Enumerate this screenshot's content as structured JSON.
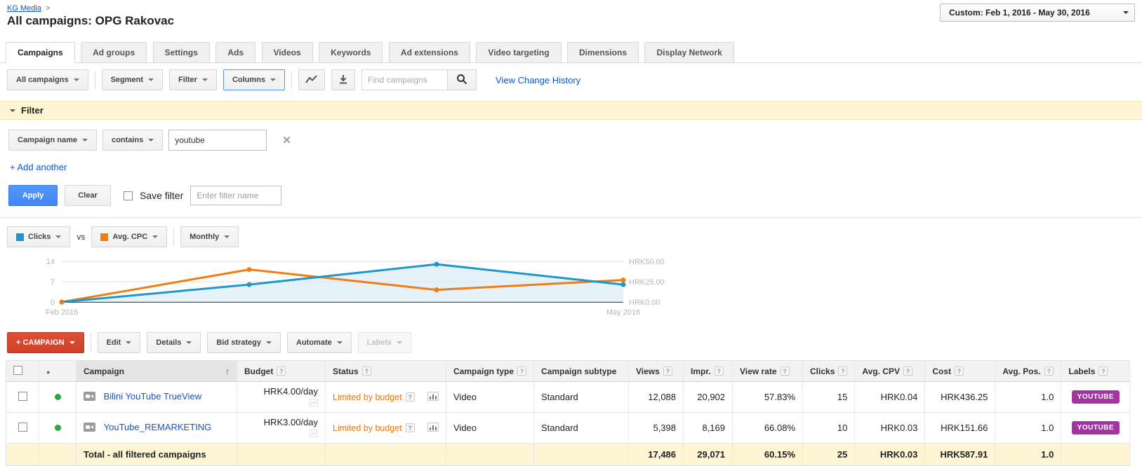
{
  "breadcrumb": {
    "account": "KG Media",
    "sep": ">"
  },
  "page_title": "All campaigns: OPG Rakovac",
  "date_range": {
    "label": "Custom: Feb 1, 2016 - May 30, 2016"
  },
  "tabs": [
    {
      "label": "Campaigns",
      "active": true
    },
    {
      "label": "Ad groups"
    },
    {
      "label": "Settings"
    },
    {
      "label": "Ads"
    },
    {
      "label": "Videos"
    },
    {
      "label": "Keywords"
    },
    {
      "label": "Ad extensions"
    },
    {
      "label": "Video targeting"
    },
    {
      "label": "Dimensions"
    },
    {
      "label": "Display Network"
    }
  ],
  "toolbar": {
    "scope_button": "All campaigns",
    "segment_button": "Segment",
    "filter_button": "Filter",
    "columns_button": "Columns",
    "search_placeholder": "Find campaigns",
    "view_change_history": "View Change History"
  },
  "filter_panel": {
    "title": "Filter",
    "field_button": "Campaign name",
    "operator_button": "contains",
    "value": "youtube",
    "add_another": "+ Add another",
    "apply_button": "Apply",
    "clear_button": "Clear",
    "save_filter_label": "Save filter",
    "filter_name_placeholder": "Enter filter name"
  },
  "chart": {
    "series1_button": "Clicks",
    "vs_label": "vs",
    "series2_button": "Avg. CPC",
    "interval_button": "Monthly",
    "left_axis": [
      "14",
      "7",
      "0"
    ],
    "right_axis": [
      "HRK50.00",
      "HRK25.00",
      "HRK0.00"
    ],
    "x_axis": [
      "Feb 2016",
      "May 2016"
    ],
    "colors": {
      "clicks": "#1f97cd",
      "clicks_fill": "#ddeef8",
      "avg_cpc": "#ef7d14"
    },
    "chart_data": {
      "type": "line",
      "x": [
        "Feb 2016",
        "Mar 2016",
        "Apr 2016",
        "May 2016"
      ],
      "series": [
        {
          "name": "Clicks",
          "axis": "left",
          "values": [
            0,
            6,
            13,
            6
          ]
        },
        {
          "name": "Avg. CPC",
          "axis": "right",
          "values": [
            0,
            40,
            15,
            27
          ]
        }
      ],
      "left_ylim": [
        0,
        14
      ],
      "right_ylim": [
        0,
        50
      ],
      "legend_position": "top-controls",
      "grid": true
    }
  },
  "actions": {
    "campaign_button": "+ CAMPAIGN",
    "edit_button": "Edit",
    "details_button": "Details",
    "bid_strategy_button": "Bid strategy",
    "automate_button": "Automate",
    "labels_button": "Labels"
  },
  "table": {
    "headers": {
      "campaign": "Campaign",
      "budget": "Budget",
      "status": "Status",
      "campaign_type": "Campaign type",
      "campaign_subtype": "Campaign subtype",
      "views": "Views",
      "impr": "Impr.",
      "view_rate": "View rate",
      "clicks": "Clicks",
      "avg_cpv": "Avg. CPV",
      "cost": "Cost",
      "avg_pos": "Avg. Pos.",
      "labels": "Labels"
    },
    "rows": [
      {
        "campaign": "Bilini YouTube TrueView",
        "budget": "HRK4.00/day",
        "status": "Limited by budget",
        "campaign_type": "Video",
        "campaign_subtype": "Standard",
        "views": "12,088",
        "impr": "20,902",
        "view_rate": "57.83%",
        "clicks": "15",
        "avg_cpv": "HRK0.04",
        "cost": "HRK436.25",
        "avg_pos": "1.0",
        "label": "YOUTUBE"
      },
      {
        "campaign": "YouTube_REMARKETING",
        "budget": "HRK3.00/day",
        "status": "Limited by budget",
        "campaign_type": "Video",
        "campaign_subtype": "Standard",
        "views": "5,398",
        "impr": "8,169",
        "view_rate": "66.08%",
        "clicks": "10",
        "avg_cpv": "HRK0.03",
        "cost": "HRK151.66",
        "avg_pos": "1.0",
        "label": "YOUTUBE"
      }
    ],
    "total_row": {
      "title": "Total - all filtered campaigns",
      "views": "17,486",
      "impr": "29,071",
      "view_rate": "60.15%",
      "clicks": "25",
      "avg_cpv": "HRK0.03",
      "cost": "HRK587.91",
      "avg_pos": "1.0"
    }
  },
  "colors": {
    "link_blue": "#1155cc",
    "apply_blue": "#4285f4",
    "campaign_red": "#d0402a",
    "label_badge_purple": "#a434a4",
    "limited_orange": "#e8780e",
    "filter_yellow": "#fdf5d3",
    "status_green": "#2aa548"
  }
}
